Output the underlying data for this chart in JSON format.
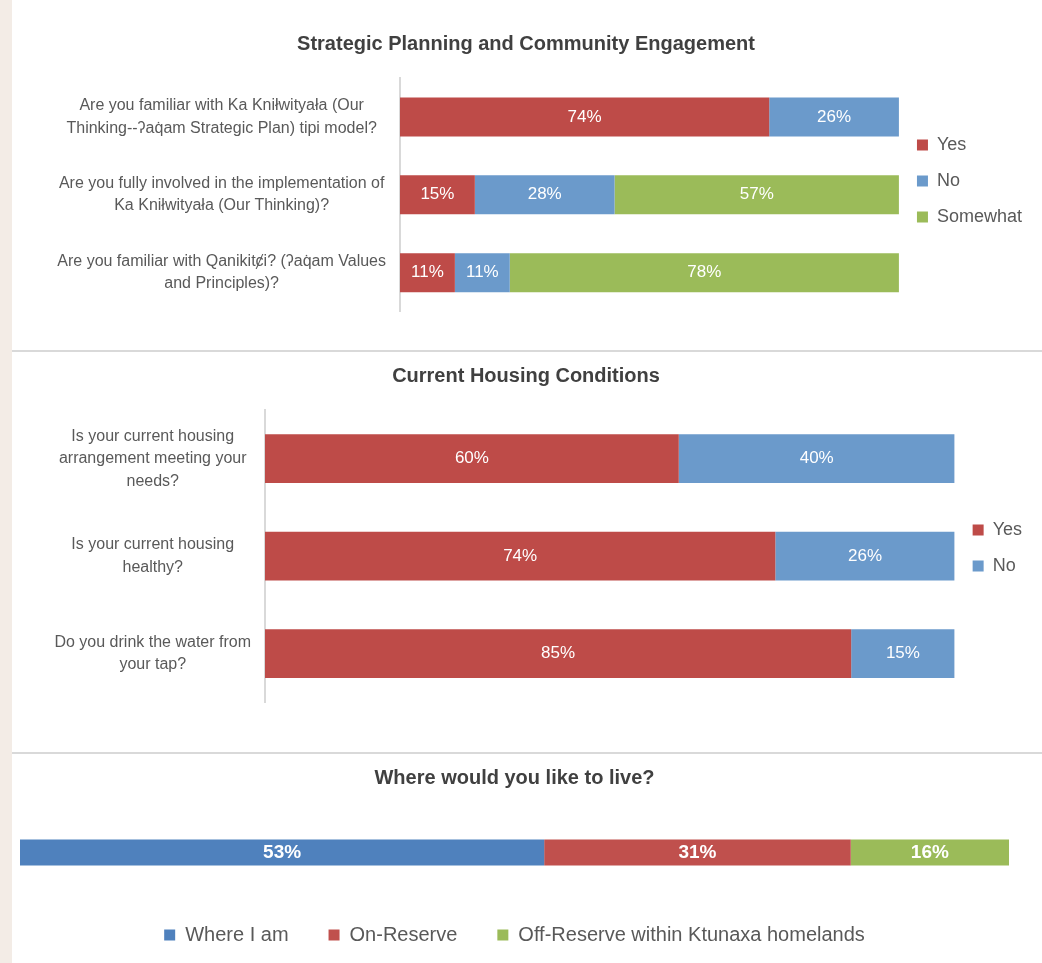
{
  "chart_data": [
    {
      "type": "bar",
      "orientation": "horizontal",
      "stacked": true,
      "title": "Strategic Planning and Community Engagement",
      "categories": [
        "Are you familiar with Ka Kniłwityała (Our Thinking--ʔaq̇am Strategic Plan) tipi model?",
        "Are you fully involved in the implementation of Ka Kniłwityała (Our Thinking)?",
        "Are you familiar with Qanikitȼi? (ʔaq̇am Values and Principles)?"
      ],
      "series": [
        {
          "name": "Yes",
          "color": "#be4b48",
          "values": [
            74,
            15,
            11
          ],
          "value_labels": [
            "74%",
            "15%",
            "11%"
          ]
        },
        {
          "name": "No",
          "color": "#6b9acb",
          "values": [
            26,
            28,
            11
          ],
          "value_labels": [
            "26%",
            "28%",
            "11%"
          ]
        },
        {
          "name": "Somewhat",
          "color": "#9bbb59",
          "values": [
            null,
            57,
            78
          ],
          "value_labels": [
            null,
            "57%",
            "78%"
          ]
        }
      ],
      "legend": "right",
      "tick_labels": "y"
    },
    {
      "type": "bar",
      "orientation": "horizontal",
      "stacked": true,
      "title": "Current Housing Conditions",
      "categories": [
        "Is your current housing arrangement meeting your needs?",
        "Is your current housing healthy?",
        "Do you drink the water from your tap?"
      ],
      "series": [
        {
          "name": "Yes",
          "color": "#be4b48",
          "values": [
            60,
            74,
            85
          ],
          "value_labels": [
            "60%",
            "74%",
            "85%"
          ]
        },
        {
          "name": "No",
          "color": "#6b9acb",
          "values": [
            40,
            26,
            15
          ],
          "value_labels": [
            "40%",
            "26%",
            "15%"
          ]
        }
      ],
      "legend": "right",
      "tick_labels": "y"
    },
    {
      "type": "bar",
      "orientation": "horizontal",
      "stacked": true,
      "title": "Where would you like to live?",
      "categories": [
        null
      ],
      "series": [
        {
          "name": "Where I am",
          "color": "#4f81bd",
          "values": [
            53
          ],
          "value_labels": [
            "53%"
          ]
        },
        {
          "name": "On-Reserve",
          "color": "#c0504d",
          "values": [
            31
          ],
          "value_labels": [
            "31%"
          ]
        },
        {
          "name": "Off-Reserve within Ktunaxa homelands",
          "color": "#9bbb59",
          "values": [
            16
          ],
          "value_labels": [
            "16%"
          ]
        }
      ],
      "legend": "bottom",
      "tick_labels": false
    }
  ]
}
